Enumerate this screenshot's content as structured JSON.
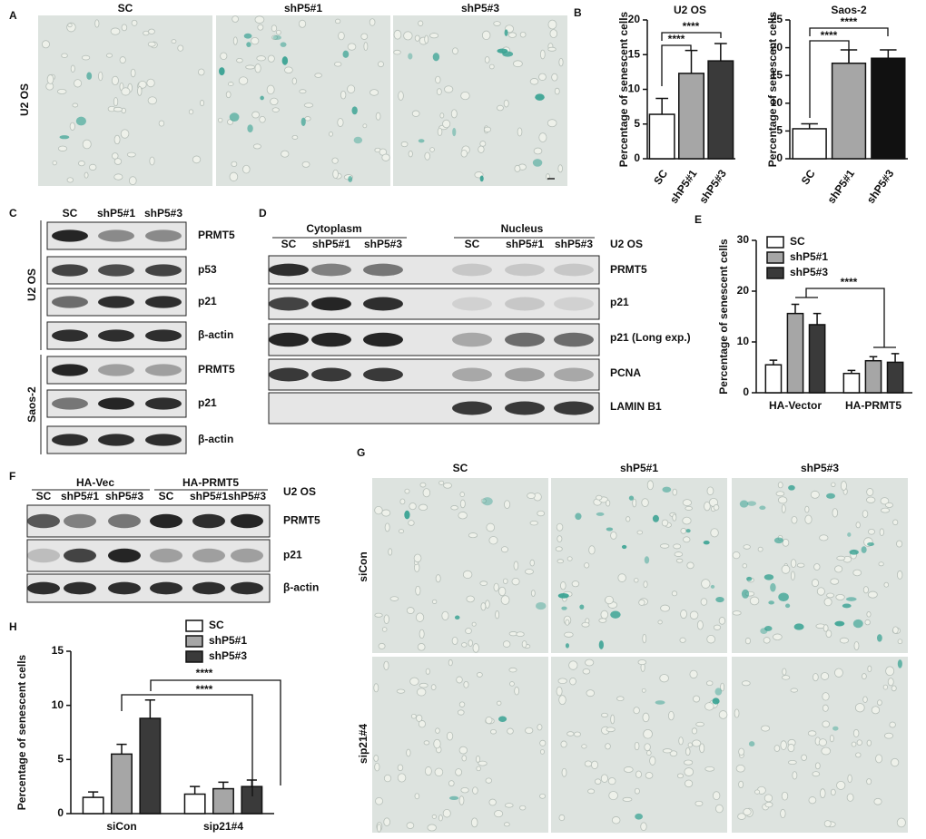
{
  "panel_labels": [
    "A",
    "B",
    "C",
    "D",
    "E",
    "F",
    "G",
    "H"
  ],
  "panel_a": {
    "row_label": "U2 OS",
    "columns": [
      "SC",
      "shP5#1",
      "shP5#3"
    ]
  },
  "panel_c": {
    "columns": [
      "SC",
      "shP5#1",
      "shP5#3"
    ],
    "groups": [
      {
        "name": "U2 OS",
        "rows": [
          "PRMT5",
          "p53",
          "p21",
          "β-actin"
        ]
      },
      {
        "name": "Saos-2",
        "rows": [
          "PRMT5",
          "p21",
          "β-actin"
        ]
      }
    ]
  },
  "panel_d": {
    "groups": [
      "Cytoplasm",
      "Nucleus"
    ],
    "columns": [
      "SC",
      "shP5#1",
      "shP5#3",
      "SC",
      "shP5#1",
      "shP5#3"
    ],
    "cell_line": "U2 OS",
    "rows": [
      "PRMT5",
      "p21",
      "p21 (Long exp.)",
      "PCNA",
      "LAMIN B1"
    ]
  },
  "panel_f": {
    "groups": [
      "HA-Vec",
      "HA-PRMT5"
    ],
    "columns": [
      "SC",
      "shP5#1",
      "shP5#3",
      "SC",
      "shP5#1",
      "shP5#3"
    ],
    "cell_line": "U2 OS",
    "rows": [
      "PRMT5",
      "p21",
      "β-actin"
    ]
  },
  "panel_g": {
    "columns": [
      "SC",
      "shP5#1",
      "shP5#3"
    ],
    "rows": [
      "siCon",
      "sip21#4"
    ]
  },
  "chart_data": [
    {
      "type": "bar",
      "title": "U2 OS",
      "y_label": "Percentage of senescent cells",
      "categories": [
        "SC",
        "shP5#1",
        "shP5#3"
      ],
      "values": [
        6.4,
        12.3,
        14.1
      ],
      "errors": [
        2.3,
        3.3,
        2.5
      ],
      "colors": [
        "#ffffff",
        "#a6a6a6",
        "#3a3a3a"
      ],
      "ylim": [
        0,
        20
      ],
      "yticks": [
        0,
        5,
        10,
        15,
        20
      ],
      "annotations": [
        "****",
        "****"
      ]
    },
    {
      "type": "bar",
      "title": "Saos-2",
      "y_label": "Percentage of senescent cells",
      "categories": [
        "SC",
        "shP5#1",
        "shP5#3"
      ],
      "values": [
        5.4,
        17.2,
        18.1
      ],
      "errors": [
        0.9,
        2.4,
        1.5
      ],
      "colors": [
        "#ffffff",
        "#a6a6a6",
        "#111111"
      ],
      "ylim": [
        0,
        25
      ],
      "yticks": [
        0,
        5,
        10,
        15,
        20,
        25
      ],
      "annotations": [
        "****",
        "****"
      ]
    },
    {
      "type": "bar",
      "y_label": "Percentage of senescent cells",
      "categories": [
        "HA-Vector",
        "HA-PRMT5"
      ],
      "series": [
        {
          "name": "SC",
          "color": "#ffffff",
          "values": [
            5.5,
            3.8
          ],
          "errors": [
            0.9,
            0.6
          ]
        },
        {
          "name": "shP5#1",
          "color": "#a6a6a6",
          "values": [
            15.6,
            6.3
          ],
          "errors": [
            1.8,
            0.8
          ]
        },
        {
          "name": "shP5#3",
          "color": "#3a3a3a",
          "values": [
            13.4,
            6.0
          ],
          "errors": [
            2.2,
            1.7
          ]
        }
      ],
      "ylim": [
        0,
        30
      ],
      "yticks": [
        0,
        10,
        20,
        30
      ],
      "legend": "upper left",
      "annotations": [
        "****"
      ]
    },
    {
      "type": "bar",
      "y_label": "Percentage of senescent cells",
      "categories": [
        "siCon",
        "sip21#4"
      ],
      "series": [
        {
          "name": "SC",
          "color": "#ffffff",
          "values": [
            1.5,
            1.8
          ],
          "errors": [
            0.5,
            0.7
          ]
        },
        {
          "name": "shP5#1",
          "color": "#a6a6a6",
          "values": [
            5.5,
            2.3
          ],
          "errors": [
            0.9,
            0.6
          ]
        },
        {
          "name": "shP5#3",
          "color": "#3a3a3a",
          "values": [
            8.8,
            2.5
          ],
          "errors": [
            1.7,
            0.6
          ]
        }
      ],
      "ylim": [
        0,
        15
      ],
      "yticks": [
        0,
        5,
        10,
        15
      ],
      "legend": "upper right",
      "annotations": [
        "****",
        "****"
      ]
    }
  ]
}
